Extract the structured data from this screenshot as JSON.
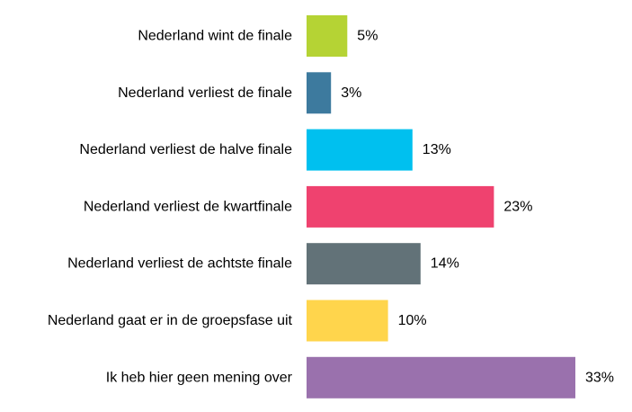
{
  "chart_data": {
    "type": "bar",
    "orientation": "horizontal",
    "title": "",
    "xlabel": "",
    "ylabel": "",
    "grid": false,
    "legend": "none",
    "xlim": [
      0,
      33
    ],
    "value_suffix": "%",
    "categories": [
      "Nederland wint de finale",
      "Nederland verliest de finale",
      "Nederland verliest de halve finale",
      "Nederland verliest de kwartfinale",
      "Nederland verliest de achtste finale",
      "Nederland gaat er in de groepsfase uit",
      "Ik heb hier geen mening over"
    ],
    "values": [
      5,
      3,
      13,
      23,
      14,
      10,
      33
    ],
    "value_labels": [
      "5%",
      "3%",
      "13%",
      "23%",
      "14%",
      "10%",
      "33%"
    ],
    "colors": [
      "#b5d334",
      "#3d7a9e",
      "#00c0ef",
      "#ef426f",
      "#627278",
      "#ffd54c",
      "#9a71ad"
    ]
  }
}
